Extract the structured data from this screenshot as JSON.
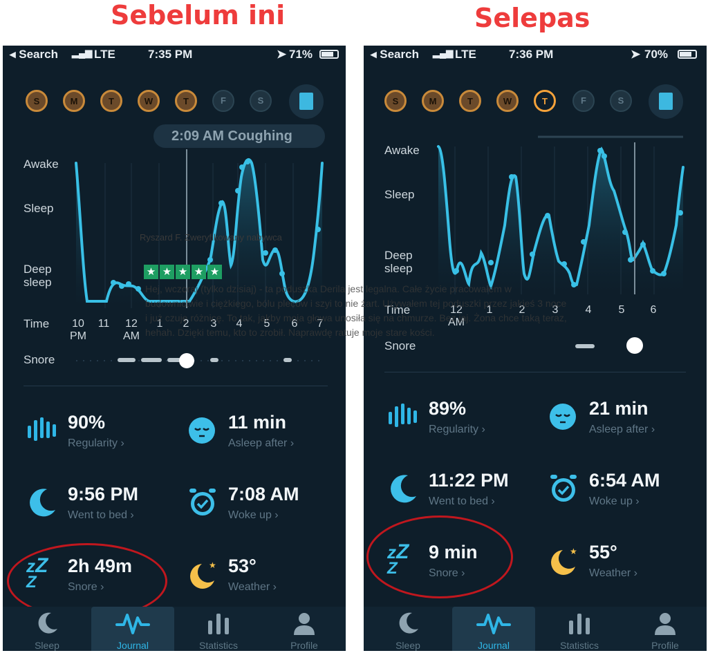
{
  "headline_before": "Sebelum ini",
  "headline_after": "Selepas",
  "phones": [
    {
      "status": {
        "carrier": "◂ Search",
        "network": "LTE",
        "time": "7:35 PM",
        "battery": "71%",
        "battery_level": 0.71
      },
      "days": [
        {
          "letter": "S",
          "state": "done"
        },
        {
          "letter": "M",
          "state": "done"
        },
        {
          "letter": "T",
          "state": "done"
        },
        {
          "letter": "W",
          "state": "done"
        },
        {
          "letter": "T",
          "state": "done"
        },
        {
          "letter": "F",
          "state": "future"
        },
        {
          "letter": "S",
          "state": "future"
        }
      ],
      "event_label": "2:09 AM Coughing",
      "y_labels": {
        "awake": "Awake",
        "sleep": "Sleep",
        "deep": "Deep\nsleep"
      },
      "time_label": "Time",
      "snore_label": "Snore",
      "time_ticks": [
        "10\nPM",
        "11",
        "12\nAM",
        "1",
        "2",
        "3",
        "4",
        "5",
        "6",
        "7"
      ],
      "stats": {
        "regularity": {
          "value": "90%",
          "label": "Regularity ›"
        },
        "asleep_after": {
          "value": "11 min",
          "label": "Asleep after ›"
        },
        "went_to_bed": {
          "value": "9:56 PM",
          "label": "Went to bed ›"
        },
        "woke_up": {
          "value": "7:08 AM",
          "label": "Woke up ›"
        },
        "snore": {
          "value": "2h 49m",
          "label": "Snore ›"
        },
        "weather": {
          "value": "53°",
          "label": "Weather ›"
        }
      },
      "nav": [
        "Sleep",
        "Journal",
        "Statistics",
        "Profile"
      ]
    },
    {
      "status": {
        "carrier": "◂ Search",
        "network": "LTE",
        "time": "7:36 PM",
        "battery": "70%",
        "battery_level": 0.7
      },
      "days": [
        {
          "letter": "S",
          "state": "done"
        },
        {
          "letter": "M",
          "state": "done"
        },
        {
          "letter": "T",
          "state": "done"
        },
        {
          "letter": "W",
          "state": "done"
        },
        {
          "letter": "T",
          "state": "today"
        },
        {
          "letter": "F",
          "state": "future"
        },
        {
          "letter": "S",
          "state": "future"
        }
      ],
      "y_labels": {
        "awake": "Awake",
        "sleep": "Sleep",
        "deep": "Deep\nsleep"
      },
      "time_label": "Time",
      "snore_label": "Snore",
      "time_ticks": [
        "12\nAM",
        "1",
        "2",
        "3",
        "4",
        "5",
        "6"
      ],
      "stats": {
        "regularity": {
          "value": "89%",
          "label": "Regularity ›"
        },
        "asleep_after": {
          "value": "21 min",
          "label": "Asleep after ›"
        },
        "went_to_bed": {
          "value": "11:22 PM",
          "label": "Went to bed ›"
        },
        "woke_up": {
          "value": "6:54 AM",
          "label": "Woke up ›"
        },
        "snore": {
          "value": "9 min",
          "label": "Snore ›"
        },
        "weather": {
          "value": "55°",
          "label": "Weather ›"
        }
      },
      "nav": [
        "Sleep",
        "Journal",
        "Statistics",
        "Profile"
      ]
    }
  ],
  "review": {
    "reviewer": "Ryszard F. Zweryfikowany nabywca",
    "stars": "★",
    "rating": 5,
    "text": "Hej, wczoraj (tylko dzisiaj) - ta poduszka Derila jest legalna. Całe życie pracowałem w budownictwie i ciężkiego, bólu pleców i szyi to nie żart. Używałem tej poduszki przez jakieś 3 noce i już czuję różnicę. To tak, jakby moja głowa unosiła się na chmurze. Bez jaj. Żona chce taką teraz, hehah. Dzięki temu, kto to zrobił. Naprawdę ratuje moje stare kości."
  },
  "colors": {
    "accent": "#2fb6e6",
    "highlight_circle": "#c0171e",
    "headline": "#ee3c3c",
    "moon": "#f5c04a"
  }
}
